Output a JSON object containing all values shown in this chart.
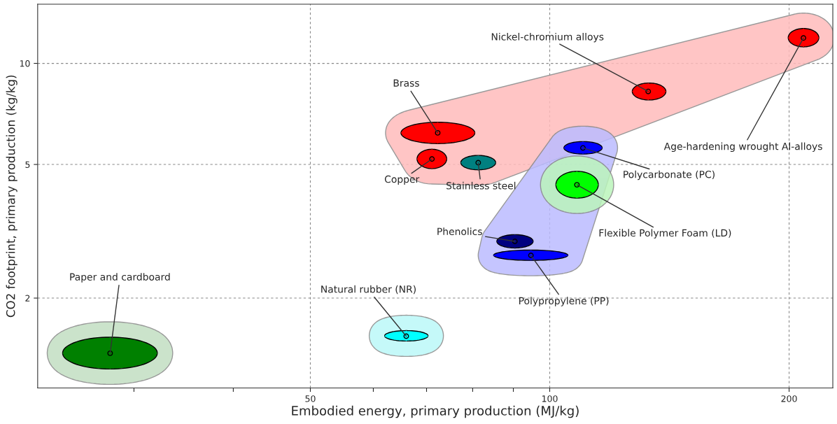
{
  "chart_data": {
    "type": "scatter",
    "xlabel": "Embodied energy, primary production (MJ/kg)",
    "ylabel": "CO2 footprint, primary production (kg/kg)",
    "log": "xy",
    "grid": true,
    "xlim": [
      22.7,
      227
    ],
    "ylim": [
      1.08,
      15
    ],
    "xticks": [
      {
        "value": 30,
        "label": null
      },
      {
        "value": 40,
        "label": null
      },
      50,
      {
        "value": 60,
        "label": null
      },
      {
        "value": 70,
        "label": null
      },
      {
        "value": 80,
        "label": null
      },
      {
        "value": 90,
        "label": null
      },
      100,
      200
    ],
    "yticks": [
      2,
      5,
      10
    ],
    "series": [
      {
        "color": "#ffbbbb",
        "x": [
          72.3,
          71.1,
          81.3,
          133,
          208.5
        ],
        "values": [
          6.21,
          5.19,
          5.06,
          8.25,
          11.9
        ],
        "xerrors": [
          [
            65.0,
            80.5
          ],
          [
            68.1,
            74.2
          ],
          [
            77.3,
            85.5
          ],
          [
            127,
            140
          ],
          [
            199.5,
            218
          ]
        ],
        "errors": [
          [
            5.77,
            6.68
          ],
          [
            4.86,
            5.55
          ],
          [
            4.82,
            5.32
          ],
          [
            7.78,
            8.74
          ],
          [
            11.2,
            12.7
          ]
        ],
        "colors": [
          "#ff0000",
          "#ff0000",
          "#008080",
          "#ff0000",
          "#ff0000"
        ]
      },
      {
        "color": "#bbbbff",
        "x": [
          90.4,
          94.7,
          110.1
        ],
        "values": [
          2.95,
          2.68,
          5.6
        ],
        "xerrors": [
          [
            85.8,
            95.3
          ],
          [
            85.0,
            105.4
          ],
          [
            104.2,
            116.4
          ]
        ],
        "errors": [
          [
            2.82,
            3.09
          ],
          [
            2.59,
            2.78
          ],
          [
            5.37,
            5.85
          ]
        ],
        "colors": [
          "#000080",
          "#0000ff",
          "#0000ff"
        ]
      },
      {
        "color": "#bbf5bb",
        "x": [
          108.2
        ],
        "values": [
          4.35
        ],
        "xerrors": [
          [
            101.8,
            115.1
          ]
        ],
        "errors": [
          [
            3.97,
            4.77
          ]
        ],
        "colors": [
          "#00ff00"
        ]
      },
      {
        "color": "#c2dfc2",
        "x": [
          28.0
        ],
        "values": [
          1.37
        ],
        "xerrors": [
          [
            24.4,
            32.1
          ]
        ],
        "errors": [
          [
            1.23,
            1.53
          ]
        ],
        "colors": [
          "#008000"
        ]
      },
      {
        "color": "#bbf8f8",
        "x": [
          66.0
        ],
        "values": [
          1.54
        ],
        "xerrors": [
          [
            62.0,
            70.3
          ]
        ],
        "errors": [
          [
            1.49,
            1.6
          ]
        ],
        "colors": [
          "#00ffff"
        ]
      }
    ],
    "annotations": [
      {
        "text": "Brass",
        "x": 72.3,
        "y": 6.21
      },
      {
        "text": "Copper",
        "x": 71.1,
        "y": 5.19
      },
      {
        "text": "Stainless steel",
        "x": 81.3,
        "y": 5.06
      },
      {
        "text": "Nickel-chromium alloys",
        "x": 133,
        "y": 8.25
      },
      {
        "text": "Age-hardening wrought Al-alloys",
        "x": 208.5,
        "y": 11.9
      },
      {
        "text": "Phenolics",
        "x": 90.4,
        "y": 2.95
      },
      {
        "text": "Polypropylene (PP)",
        "x": 94.7,
        "y": 2.68
      },
      {
        "text": "Polycarbonate (PC)",
        "x": 110.1,
        "y": 5.6
      },
      {
        "text": "Flexible Polymer Foam (LD)",
        "x": 108.2,
        "y": 4.35
      },
      {
        "text": "Paper and cardboard",
        "x": 28.0,
        "y": 1.37
      },
      {
        "text": "Natural rubber (NR)",
        "x": 66.0,
        "y": 1.54
      }
    ]
  }
}
